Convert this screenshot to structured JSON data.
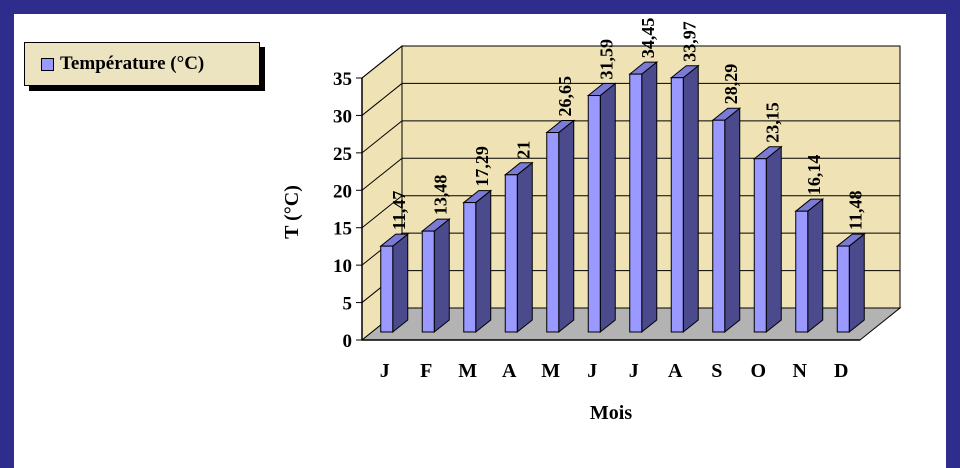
{
  "legend": {
    "label": "Température (°C)"
  },
  "colors": {
    "frame": "#2e2c8c",
    "bar_front": "#9999ff",
    "bar_side": "#4a4a8c",
    "bar_top": "#7b7bd6",
    "wall": "#efe2b4",
    "floor": "#b3b3b3",
    "legend_bg": "#ece3c1"
  },
  "chart_data": {
    "type": "bar",
    "categories": [
      "J",
      "F",
      "M",
      "A",
      "M",
      "J",
      "J",
      "A",
      "S",
      "O",
      "N",
      "D"
    ],
    "series": [
      {
        "name": "Température (°C)",
        "values": [
          11.47,
          13.48,
          17.29,
          21,
          26.65,
          31.59,
          34.45,
          33.97,
          28.29,
          23.15,
          16.14,
          11.48
        ],
        "value_labels": [
          "11,47",
          "13,48",
          "17,29",
          "21",
          "26,65",
          "31,59",
          "34,45",
          "33,97",
          "28,29",
          "23,15",
          "16,14",
          "11,48"
        ]
      }
    ],
    "xlabel": "Mois",
    "ylabel": "T (°C)",
    "ylim": [
      0,
      35
    ],
    "yticks": [
      "0",
      "5",
      "10",
      "15",
      "20",
      "25",
      "30",
      "35"
    ],
    "ytick_values": [
      0,
      5,
      10,
      15,
      20,
      25,
      30,
      35
    ],
    "grid": true,
    "legend_position": "top-left",
    "style": "3d"
  }
}
